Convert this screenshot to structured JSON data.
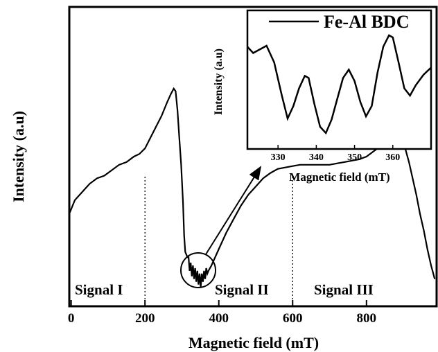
{
  "chart_data": [
    {
      "type": "line",
      "xlabel": "Magnetic field (mT)",
      "ylabel": "Intensity (a.u)",
      "xlim": [
        -5,
        990
      ],
      "ylim": [
        -10,
        100
      ],
      "xticks": [
        0,
        200,
        400,
        600,
        800
      ],
      "series": [
        {
          "x": [
            -5,
            10,
            30,
            50,
            70,
            90,
            110,
            130,
            150,
            170,
            185,
            200,
            215,
            230,
            245,
            260,
            270,
            278,
            283,
            288,
            293,
            298,
            303,
            306,
            309,
            312,
            315,
            318,
            321,
            324,
            327,
            330,
            333,
            336,
            339,
            342,
            345,
            348,
            351,
            354,
            357,
            360,
            363,
            366,
            369,
            372,
            380,
            400,
            420,
            440,
            460,
            480,
            500,
            520,
            540,
            560,
            580,
            600,
            620,
            640,
            660,
            680,
            700,
            720,
            740,
            760,
            780,
            800,
            820,
            840,
            860,
            875,
            885,
            895,
            905,
            915,
            925,
            935,
            945,
            955,
            965,
            975,
            985
          ],
          "y": [
            24,
            29,
            32,
            35,
            37,
            38,
            40,
            42,
            43,
            45,
            46,
            48,
            52,
            56,
            60,
            65,
            68,
            70,
            69,
            62,
            52,
            42,
            28,
            16,
            10,
            9,
            8,
            8,
            3,
            6,
            1,
            5,
            0,
            4,
            -1,
            3,
            -2,
            2,
            -3,
            2,
            -1,
            3,
            0,
            4,
            2,
            3,
            5,
            11,
            17,
            22,
            27,
            31,
            34,
            37,
            39,
            40.5,
            41,
            41.5,
            42,
            42,
            42,
            42,
            42,
            42.5,
            43,
            43.5,
            44,
            45,
            47,
            49,
            52,
            54,
            54,
            52,
            48,
            43,
            37,
            31,
            24,
            18,
            11,
            5,
            0
          ]
        }
      ],
      "annotations": [
        {
          "text": "Signal I"
        },
        {
          "text": "Signal II"
        },
        {
          "text": "Signal III"
        }
      ],
      "dividers_x": [
        200,
        600
      ],
      "grid": false
    },
    {
      "type": "line",
      "xlabel": "Magnetic field (mT)",
      "ylabel": "Intensity (a.u)",
      "xlim": [
        322,
        370
      ],
      "ylim": [
        0,
        100
      ],
      "xticks": [
        330,
        340,
        350,
        360
      ],
      "legend": "top-right",
      "series": [
        {
          "name": "Fe-Al BDC",
          "x": [
            322,
            323.5,
            325,
            327,
            329,
            331,
            332.5,
            334,
            335.5,
            337,
            338,
            339.5,
            341,
            342.5,
            344,
            345.5,
            347,
            348.5,
            350,
            351.5,
            353,
            354.5,
            356,
            357.5,
            359,
            360,
            361.5,
            363,
            364.5,
            366,
            368,
            370
          ],
          "y": [
            85,
            79,
            82,
            86,
            70,
            38,
            16,
            28,
            45,
            57,
            55,
            30,
            8,
            2,
            15,
            35,
            55,
            63,
            52,
            32,
            18,
            28,
            60,
            85,
            96,
            94,
            70,
            45,
            38,
            48,
            58,
            65
          ]
        }
      ],
      "grid": false
    }
  ]
}
